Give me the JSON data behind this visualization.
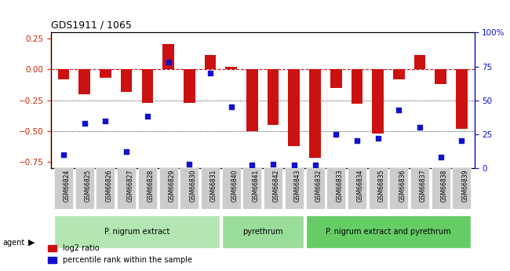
{
  "title": "GDS1911 / 1065",
  "samples": [
    "GSM66824",
    "GSM66825",
    "GSM66826",
    "GSM66827",
    "GSM66828",
    "GSM66829",
    "GSM66830",
    "GSM66831",
    "GSM66840",
    "GSM66841",
    "GSM66842",
    "GSM66843",
    "GSM66832",
    "GSM66833",
    "GSM66834",
    "GSM66835",
    "GSM66836",
    "GSM66837",
    "GSM66838",
    "GSM66839"
  ],
  "log2_ratio": [
    -0.08,
    -0.2,
    -0.07,
    -0.18,
    -0.27,
    0.21,
    -0.27,
    0.12,
    0.02,
    -0.5,
    -0.45,
    -0.62,
    -0.72,
    -0.15,
    -0.28,
    -0.52,
    -0.08,
    0.12,
    -0.12,
    -0.48
  ],
  "pct_rank": [
    10,
    33,
    35,
    12,
    38,
    78,
    3,
    70,
    45,
    2,
    3,
    2,
    2,
    25,
    20,
    22,
    43,
    30,
    8,
    20
  ],
  "groups": [
    {
      "label": "P. nigrum extract",
      "start": 0,
      "end": 8,
      "color": "#b3e6b3"
    },
    {
      "label": "pyrethrum",
      "start": 8,
      "end": 12,
      "color": "#99dd99"
    },
    {
      "label": "P. nigrum extract and pyrethrum",
      "start": 12,
      "end": 20,
      "color": "#66cc66"
    }
  ],
  "bar_color": "#cc1111",
  "dot_color": "#1111cc",
  "ylim_left": [
    -0.8,
    0.3
  ],
  "ylim_right": [
    0,
    100
  ],
  "yticks_left": [
    0.25,
    0,
    -0.25,
    -0.5,
    -0.75
  ],
  "yticks_right": [
    100,
    75,
    50,
    25,
    0
  ],
  "hlines": [
    0.0,
    -0.25,
    -0.5
  ],
  "background_color": "#f0f0f0"
}
